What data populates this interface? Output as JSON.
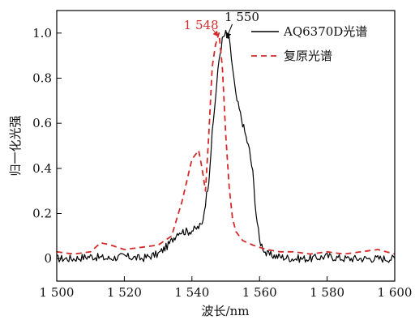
{
  "chart_data": {
    "type": "line",
    "xlabel": "波长/nm",
    "ylabel": "归一化光强",
    "xlim": [
      1500,
      1600
    ],
    "ylim": [
      -0.1,
      1.1
    ],
    "x_ticks": [
      1500,
      1520,
      1540,
      1560,
      1580,
      1600
    ],
    "x_tick_labels": [
      "1 500",
      "1 520",
      "1 540",
      "1 560",
      "1 580",
      "1 600"
    ],
    "y_ticks": [
      0,
      0.2,
      0.4,
      0.6,
      0.8,
      1.0
    ],
    "y_tick_labels": [
      "0",
      "0.2",
      "0.4",
      "0.6",
      "0.8",
      "1.0"
    ],
    "legend_position": "top-right",
    "series": [
      {
        "name": "AQ6370D光谱",
        "color": "#000000",
        "style": "solid",
        "x": [
          1500,
          1505,
          1510,
          1515,
          1520,
          1525,
          1530,
          1533,
          1536,
          1539,
          1541,
          1543,
          1545,
          1546,
          1547,
          1548,
          1549,
          1550,
          1551,
          1552,
          1553,
          1555,
          1557,
          1558,
          1559,
          1560,
          1562,
          1565,
          1570,
          1575,
          1580,
          1585,
          1590,
          1595,
          1600
        ],
        "y": [
          0.0,
          0.0,
          0.01,
          0.0,
          0.01,
          0.0,
          0.02,
          0.06,
          0.12,
          0.12,
          0.13,
          0.15,
          0.35,
          0.55,
          0.72,
          0.88,
          0.97,
          1.0,
          0.97,
          0.85,
          0.72,
          0.6,
          0.48,
          0.38,
          0.2,
          0.08,
          0.02,
          0.01,
          0.0,
          0.0,
          0.01,
          0.0,
          0.0,
          0.0,
          0.0
        ]
      },
      {
        "name": "复原光谱",
        "color": "#d42a2a",
        "style": "dashed",
        "x": [
          1500,
          1505,
          1510,
          1513,
          1516,
          1520,
          1525,
          1530,
          1534,
          1537,
          1540,
          1541,
          1542,
          1543,
          1544,
          1545,
          1546,
          1547,
          1548,
          1549,
          1550,
          1551,
          1552,
          1553,
          1555,
          1558,
          1562,
          1566,
          1570,
          1575,
          1580,
          1585,
          1590,
          1595,
          1600
        ],
        "y": [
          0.03,
          0.02,
          0.03,
          0.07,
          0.06,
          0.04,
          0.05,
          0.06,
          0.1,
          0.25,
          0.44,
          0.46,
          0.48,
          0.4,
          0.3,
          0.55,
          0.85,
          0.95,
          1.0,
          0.85,
          0.55,
          0.32,
          0.18,
          0.12,
          0.08,
          0.06,
          0.04,
          0.03,
          0.03,
          0.02,
          0.03,
          0.02,
          0.03,
          0.04,
          0.02
        ]
      }
    ],
    "annotations": [
      {
        "text": "1 548",
        "x": 1548,
        "y": 1.0,
        "color": "#d42a2a"
      },
      {
        "text": "1 550",
        "x": 1550,
        "y": 1.0,
        "color": "#000000"
      }
    ]
  }
}
